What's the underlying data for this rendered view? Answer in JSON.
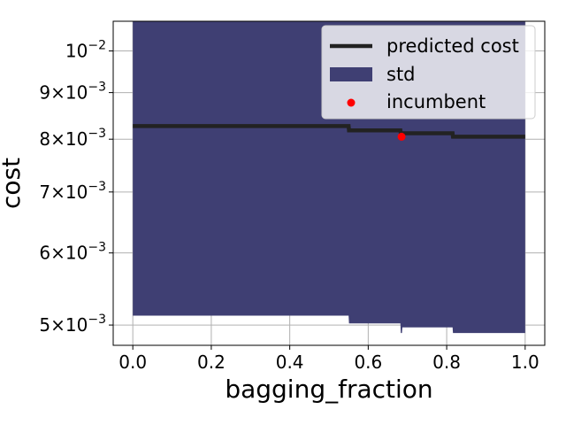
{
  "chart_data": {
    "type": "line",
    "xlabel": "bagging_fraction",
    "ylabel": "cost",
    "xlim": [
      -0.05,
      1.05
    ],
    "ylim": [
      0.00475,
      0.01078
    ],
    "yscale": "log",
    "grid": true,
    "legend_position": "top-right",
    "x_ticks": [
      0.0,
      0.2,
      0.4,
      0.6,
      0.8,
      1.0
    ],
    "x_tick_labels": [
      "0.0",
      "0.2",
      "0.4",
      "0.6",
      "0.8",
      "1.0"
    ],
    "y_ticks": [
      {
        "value": 0.005,
        "mantissa": "5",
        "base": "10",
        "exp": "−3"
      },
      {
        "value": 0.006,
        "mantissa": "6",
        "base": "10",
        "exp": "−3"
      },
      {
        "value": 0.007,
        "mantissa": "7",
        "base": "10",
        "exp": "−3"
      },
      {
        "value": 0.008,
        "mantissa": "8",
        "base": "10",
        "exp": "−3"
      },
      {
        "value": 0.009,
        "mantissa": "9",
        "base": "10",
        "exp": "−3"
      },
      {
        "value": 0.01,
        "mantissa": "",
        "base": "10",
        "exp": "−2"
      }
    ],
    "series": [
      {
        "name": "predicted cost",
        "kind": "line",
        "color": "#222222",
        "x": [
          0.0,
          0.55,
          0.551,
          0.682,
          0.683,
          0.815,
          0.816,
          1.0
        ],
        "y": [
          0.00827,
          0.00827,
          0.00818,
          0.00818,
          0.00812,
          0.00812,
          0.00805,
          0.00805
        ]
      },
      {
        "name": "std",
        "kind": "band",
        "color": "#3f3f73",
        "x": [
          0.0,
          0.55,
          0.551,
          0.682,
          0.683,
          0.686,
          0.687,
          0.815,
          0.816,
          1.0
        ],
        "lower": [
          0.00512,
          0.00512,
          0.00502,
          0.00502,
          0.0049,
          0.0049,
          0.00497,
          0.00497,
          0.0049,
          0.0049
        ],
        "upper": [
          0.0115,
          0.0115,
          0.011,
          0.011,
          0.011,
          0.011,
          0.011,
          0.011,
          0.011,
          0.011
        ]
      },
      {
        "name": "incumbent",
        "kind": "scatter",
        "color": "#ff0000",
        "x": [
          0.685
        ],
        "y": [
          0.00805
        ]
      }
    ]
  }
}
